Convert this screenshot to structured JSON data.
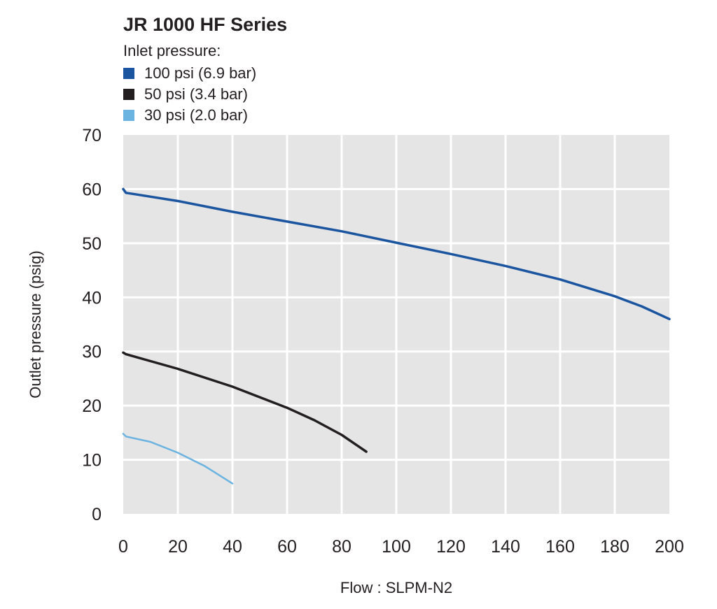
{
  "chart_data": {
    "type": "line",
    "title": "JR 1000 HF Series",
    "legend_title": "Inlet pressure:",
    "xlabel": "Flow : SLPM-N2",
    "ylabel": "Outlet pressure (psig)",
    "xlim": [
      0,
      200
    ],
    "ylim": [
      0,
      70
    ],
    "x_ticks": [
      0,
      20,
      40,
      60,
      80,
      100,
      120,
      140,
      160,
      180,
      200
    ],
    "y_ticks": [
      0,
      10,
      20,
      30,
      40,
      50,
      60,
      70
    ],
    "grid": true,
    "legend_position": "top-left",
    "series": [
      {
        "name": "100 psi (6.9 bar)",
        "color": "#1b55a0",
        "points": [
          [
            0,
            60
          ],
          [
            1,
            59.3
          ],
          [
            5,
            59
          ],
          [
            20,
            57.8
          ],
          [
            40,
            55.8
          ],
          [
            60,
            54
          ],
          [
            80,
            52.2
          ],
          [
            100,
            50.1
          ],
          [
            120,
            48
          ],
          [
            140,
            45.8
          ],
          [
            160,
            43.3
          ],
          [
            180,
            40.2
          ],
          [
            190,
            38.3
          ],
          [
            200,
            36
          ]
        ]
      },
      {
        "name": "50 psi (3.4 bar)",
        "color": "#231f20",
        "points": [
          [
            0,
            29.8
          ],
          [
            1,
            29.5
          ],
          [
            20,
            26.8
          ],
          [
            40,
            23.5
          ],
          [
            60,
            19.6
          ],
          [
            70,
            17.3
          ],
          [
            80,
            14.6
          ],
          [
            89,
            11.5
          ]
        ]
      },
      {
        "name": "30 psi (2.0 bar)",
        "color": "#6bb3e0",
        "points": [
          [
            0,
            14.8
          ],
          [
            1,
            14.3
          ],
          [
            10,
            13.3
          ],
          [
            20,
            11.3
          ],
          [
            30,
            8.8
          ],
          [
            40,
            5.6
          ]
        ]
      }
    ]
  }
}
